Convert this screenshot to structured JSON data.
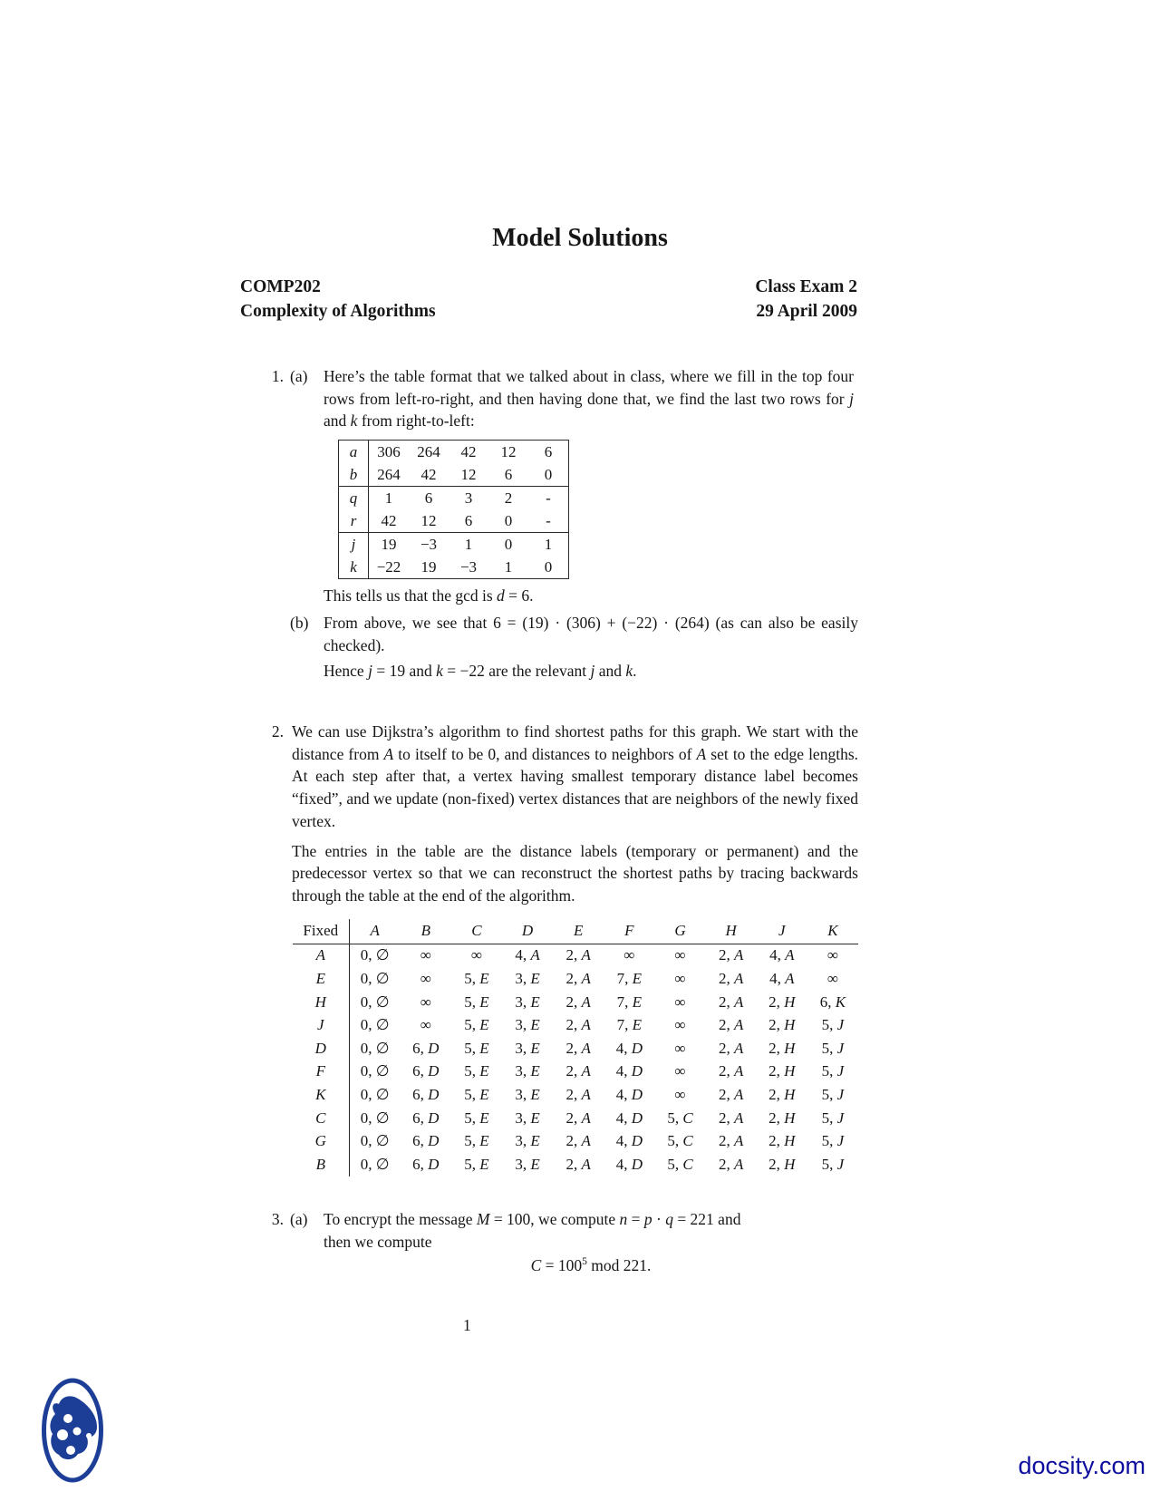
{
  "page": {
    "title": "Model Solutions",
    "number": "1"
  },
  "header": {
    "course_code": "COMP202",
    "course_name": "Complexity of Algorithms",
    "exam_name": "Class Exam 2",
    "exam_date": "29 April 2009"
  },
  "problem1": {
    "number": "1.",
    "part_a_label": "(a)",
    "part_b_label": "(b)",
    "intro": [
      {
        "t": "Here’s the table format that we talked about in class, where we fill in the top four rows from left-ro-right, and then having done that, we find the last two rows for "
      },
      {
        "t": "j",
        "i": true
      },
      {
        "t": " and "
      },
      {
        "t": "k",
        "i": true
      },
      {
        "t": " from right-to-left:"
      }
    ],
    "gcd_table": {
      "rows": [
        {
          "label": "a",
          "cells": [
            "306",
            "264",
            "42",
            "12",
            "6"
          ]
        },
        {
          "label": "b",
          "cells": [
            "264",
            "42",
            "12",
            "6",
            "0"
          ]
        },
        {
          "label": "q",
          "cells": [
            "1",
            "6",
            "3",
            "2",
            "-"
          ]
        },
        {
          "label": "r",
          "cells": [
            "42",
            "12",
            "6",
            "0",
            "-"
          ]
        },
        {
          "label": "j",
          "cells": [
            "19",
            "−3",
            "1",
            "0",
            "1"
          ]
        },
        {
          "label": "k",
          "cells": [
            "−22",
            "19",
            "−3",
            "1",
            "0"
          ]
        }
      ],
      "group_breaks": [
        1,
        3
      ]
    },
    "conclusion": [
      {
        "t": "This tells us that the gcd is "
      },
      {
        "t": "d",
        "i": true
      },
      {
        "t": " = 6."
      }
    ],
    "part_b_text": [
      {
        "t": "From above, we see that 6 = (19) · (306) + (−22) · (264) (as can also be easily checked)."
      }
    ],
    "part_b_hence": [
      {
        "t": "Hence "
      },
      {
        "t": "j",
        "i": true
      },
      {
        "t": " = 19 and "
      },
      {
        "t": "k",
        "i": true
      },
      {
        "t": " = −22 are the relevant "
      },
      {
        "t": "j",
        "i": true
      },
      {
        "t": " and "
      },
      {
        "t": "k",
        "i": true
      },
      {
        "t": "."
      }
    ]
  },
  "problem2": {
    "number": "2.",
    "para1": [
      {
        "t": "We can use Dijkstra’s algorithm to find shortest paths for this graph. We start with the distance from "
      },
      {
        "t": "A",
        "i": true
      },
      {
        "t": " to itself to be 0, and distances to neighbors of "
      },
      {
        "t": "A",
        "i": true
      },
      {
        "t": " set to the edge lengths. At each step after that, a vertex having smallest temporary distance label becomes “fixed”, and we update (non-fixed) vertex distances that are neighbors of the newly fixed vertex."
      }
    ],
    "para2": [
      {
        "t": "The entries in the table are the distance labels (temporary or permanent) and the predecessor vertex so that we can reconstruct the shortest paths by tracing backwards through the table at the end of the algorithm."
      }
    ],
    "dijkstra_table": {
      "header": [
        "Fixed",
        "A",
        "B",
        "C",
        "D",
        "E",
        "F",
        "G",
        "H",
        "J",
        "K"
      ],
      "rows": [
        {
          "label": "A",
          "cells": [
            "0, ∅",
            "∞",
            "∞",
            "4, A",
            "2, A",
            "∞",
            "∞",
            "2, A",
            "4, A",
            "∞"
          ]
        },
        {
          "label": "E",
          "cells": [
            "0, ∅",
            "∞",
            "5, E",
            "3, E",
            "2, A",
            "7, E",
            "∞",
            "2, A",
            "4, A",
            "∞"
          ]
        },
        {
          "label": "H",
          "cells": [
            "0, ∅",
            "∞",
            "5, E",
            "3, E",
            "2, A",
            "7, E",
            "∞",
            "2, A",
            "2, H",
            "6, K"
          ]
        },
        {
          "label": "J",
          "cells": [
            "0, ∅",
            "∞",
            "5, E",
            "3, E",
            "2, A",
            "7, E",
            "∞",
            "2, A",
            "2, H",
            "5, J"
          ]
        },
        {
          "label": "D",
          "cells": [
            "0, ∅",
            "6, D",
            "5, E",
            "3, E",
            "2, A",
            "4, D",
            "∞",
            "2, A",
            "2, H",
            "5, J"
          ]
        },
        {
          "label": "F",
          "cells": [
            "0, ∅",
            "6, D",
            "5, E",
            "3, E",
            "2, A",
            "4, D",
            "∞",
            "2, A",
            "2, H",
            "5, J"
          ]
        },
        {
          "label": "K",
          "cells": [
            "0, ∅",
            "6, D",
            "5, E",
            "3, E",
            "2, A",
            "4, D",
            "∞",
            "2, A",
            "2, H",
            "5, J"
          ]
        },
        {
          "label": "C",
          "cells": [
            "0, ∅",
            "6, D",
            "5, E",
            "3, E",
            "2, A",
            "4, D",
            "5, C",
            "2, A",
            "2, H",
            "5, J"
          ]
        },
        {
          "label": "G",
          "cells": [
            "0, ∅",
            "6, D",
            "5, E",
            "3, E",
            "2, A",
            "4, D",
            "5, C",
            "2, A",
            "2, H",
            "5, J"
          ]
        },
        {
          "label": "B",
          "cells": [
            "0, ∅",
            "6, D",
            "5, E",
            "3, E",
            "2, A",
            "4, D",
            "5, C",
            "2, A",
            "2, H",
            "5, J"
          ]
        }
      ]
    }
  },
  "problem3": {
    "number": "3.",
    "part_a_label": "(a)",
    "text": [
      {
        "t": "To encrypt the message "
      },
      {
        "t": "M",
        "i": true
      },
      {
        "t": " = 100, we compute "
      },
      {
        "t": "n",
        "i": true
      },
      {
        "t": " = "
      },
      {
        "t": "p",
        "i": true
      },
      {
        "t": " · "
      },
      {
        "t": "q",
        "i": true
      },
      {
        "t": " = 221 and"
      },
      {
        "br": true
      },
      {
        "t": "then we compute"
      }
    ],
    "equation": [
      {
        "t": "C",
        "i": true
      },
      {
        "t": " = 100"
      },
      {
        "t": "5",
        "sup": true
      },
      {
        "t": " mod 221."
      }
    ]
  },
  "footer": {
    "brand": "docsity.com",
    "brand_color": "#0d0d9e",
    "logo_name": "docsity-logo",
    "logo_color": "#1c3e96"
  }
}
